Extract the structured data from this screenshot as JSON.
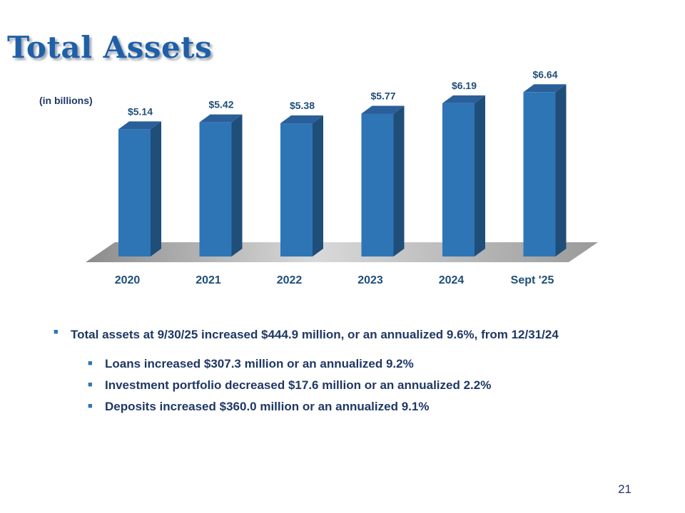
{
  "slide": {
    "title": "Total Assets",
    "unit_note": "(in billions)",
    "page_number": "21"
  },
  "chart_data": {
    "type": "bar",
    "categories": [
      "2020",
      "2021",
      "2022",
      "2023",
      "2024",
      "Sept '25"
    ],
    "values": [
      5.14,
      5.42,
      5.38,
      5.77,
      6.19,
      6.64
    ],
    "data_labels": [
      "$5.14",
      "$5.42",
      "$5.38",
      "$5.77",
      "$6.19",
      "$6.64"
    ],
    "title": "",
    "xlabel": "",
    "ylabel": "",
    "ylim": [
      0,
      8
    ],
    "grid": false,
    "legend": "none",
    "style": "3d-columns",
    "colors": {
      "bar_front": "#2e75b6",
      "bar_side": "#1f4e79",
      "bar_top": "#2a5f9a",
      "floor": "#b3b3b3"
    }
  },
  "bullets": {
    "main": "Total assets at 9/30/25 increased $444.9 million, or an annualized 9.6%, from 12/31/24",
    "sub": [
      "Loans increased $307.3 million or an annualized 9.2%",
      "Investment portfolio decreased $17.6 million or an annualized 2.2%",
      "Deposits increased $360.0 million or an annualized 9.1%"
    ]
  }
}
